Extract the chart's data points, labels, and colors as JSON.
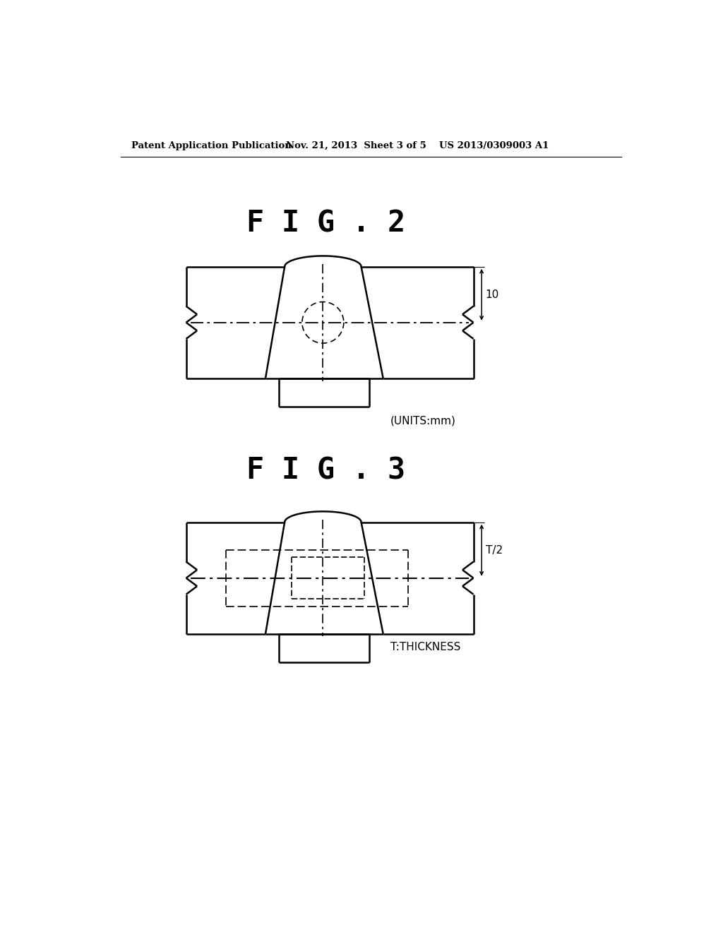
{
  "bg_color": "#ffffff",
  "text_color": "#000000",
  "header_left": "Patent Application Publication",
  "header_mid": "Nov. 21, 2013  Sheet 3 of 5",
  "header_right": "US 2013/0309003 A1",
  "fig2_title": "F I G . 2",
  "fig3_title": "F I G . 3",
  "units_label": "(UNITS:mm)",
  "thickness_label": "T:THICKNESS",
  "dim_label_10": "10",
  "dim_label_T2": "T/2",
  "line_color": "#000000"
}
